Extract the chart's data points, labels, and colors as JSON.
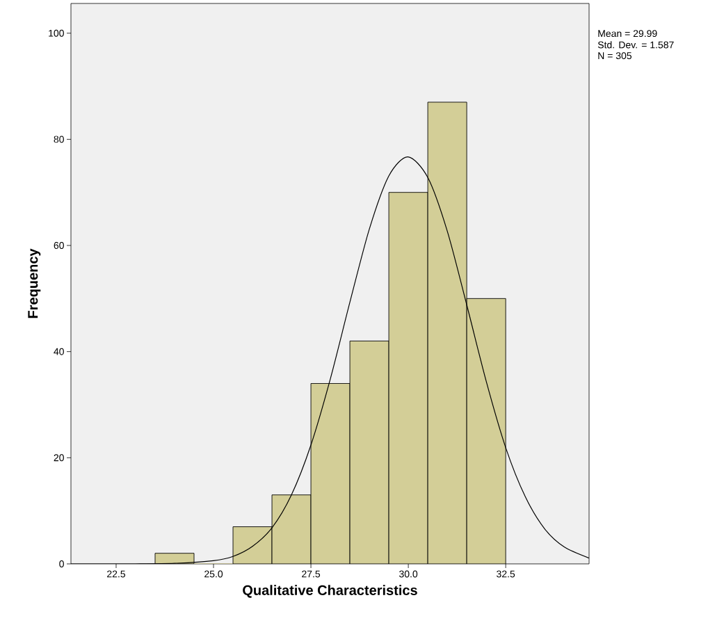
{
  "chart_data": {
    "type": "histogram",
    "xlabel": "Qualitative Characteristics",
    "ylabel": "Frequency",
    "annotations": [
      "Mean = 29.99",
      "Std. Dev. = 1.587",
      "N = 305"
    ],
    "series": [
      {
        "color": "#d3ce97",
        "bins": [
          23.5,
          24.5,
          25.5,
          26.5,
          27.5,
          28.5,
          29.5,
          30.5,
          31.5,
          32.5
        ],
        "values": [
          2,
          0,
          7,
          13,
          34,
          42,
          70,
          87,
          50
        ]
      },
      {
        "type": "line",
        "color": "#000000",
        "x": [
          21.34,
          23,
          24,
          25,
          25.5,
          26,
          26.5,
          27,
          27.5,
          28,
          28.5,
          29,
          29.5,
          29.99,
          30.5,
          31,
          31.5,
          32,
          32.5,
          33,
          33.5,
          34,
          34.64
        ],
        "values": [
          0,
          0,
          0.1,
          0.6,
          1.4,
          3.3,
          6.8,
          13,
          22.4,
          34.9,
          49.3,
          63.1,
          73.1,
          76.7,
          72.8,
          62.7,
          48.8,
          34.4,
          21.9,
          12.7,
          6.6,
          3.2,
          1.1
        ]
      }
    ],
    "xlim": [
      21.34,
      34.64
    ],
    "ylim": [
      0,
      105.6
    ],
    "xticks": [
      22.5,
      {
        "value": 25,
        "label": "25.0"
      },
      27.5,
      {
        "value": 30,
        "label": "30.0"
      },
      32.5
    ],
    "yticks": [
      0,
      20,
      40,
      60,
      80,
      100
    ]
  }
}
